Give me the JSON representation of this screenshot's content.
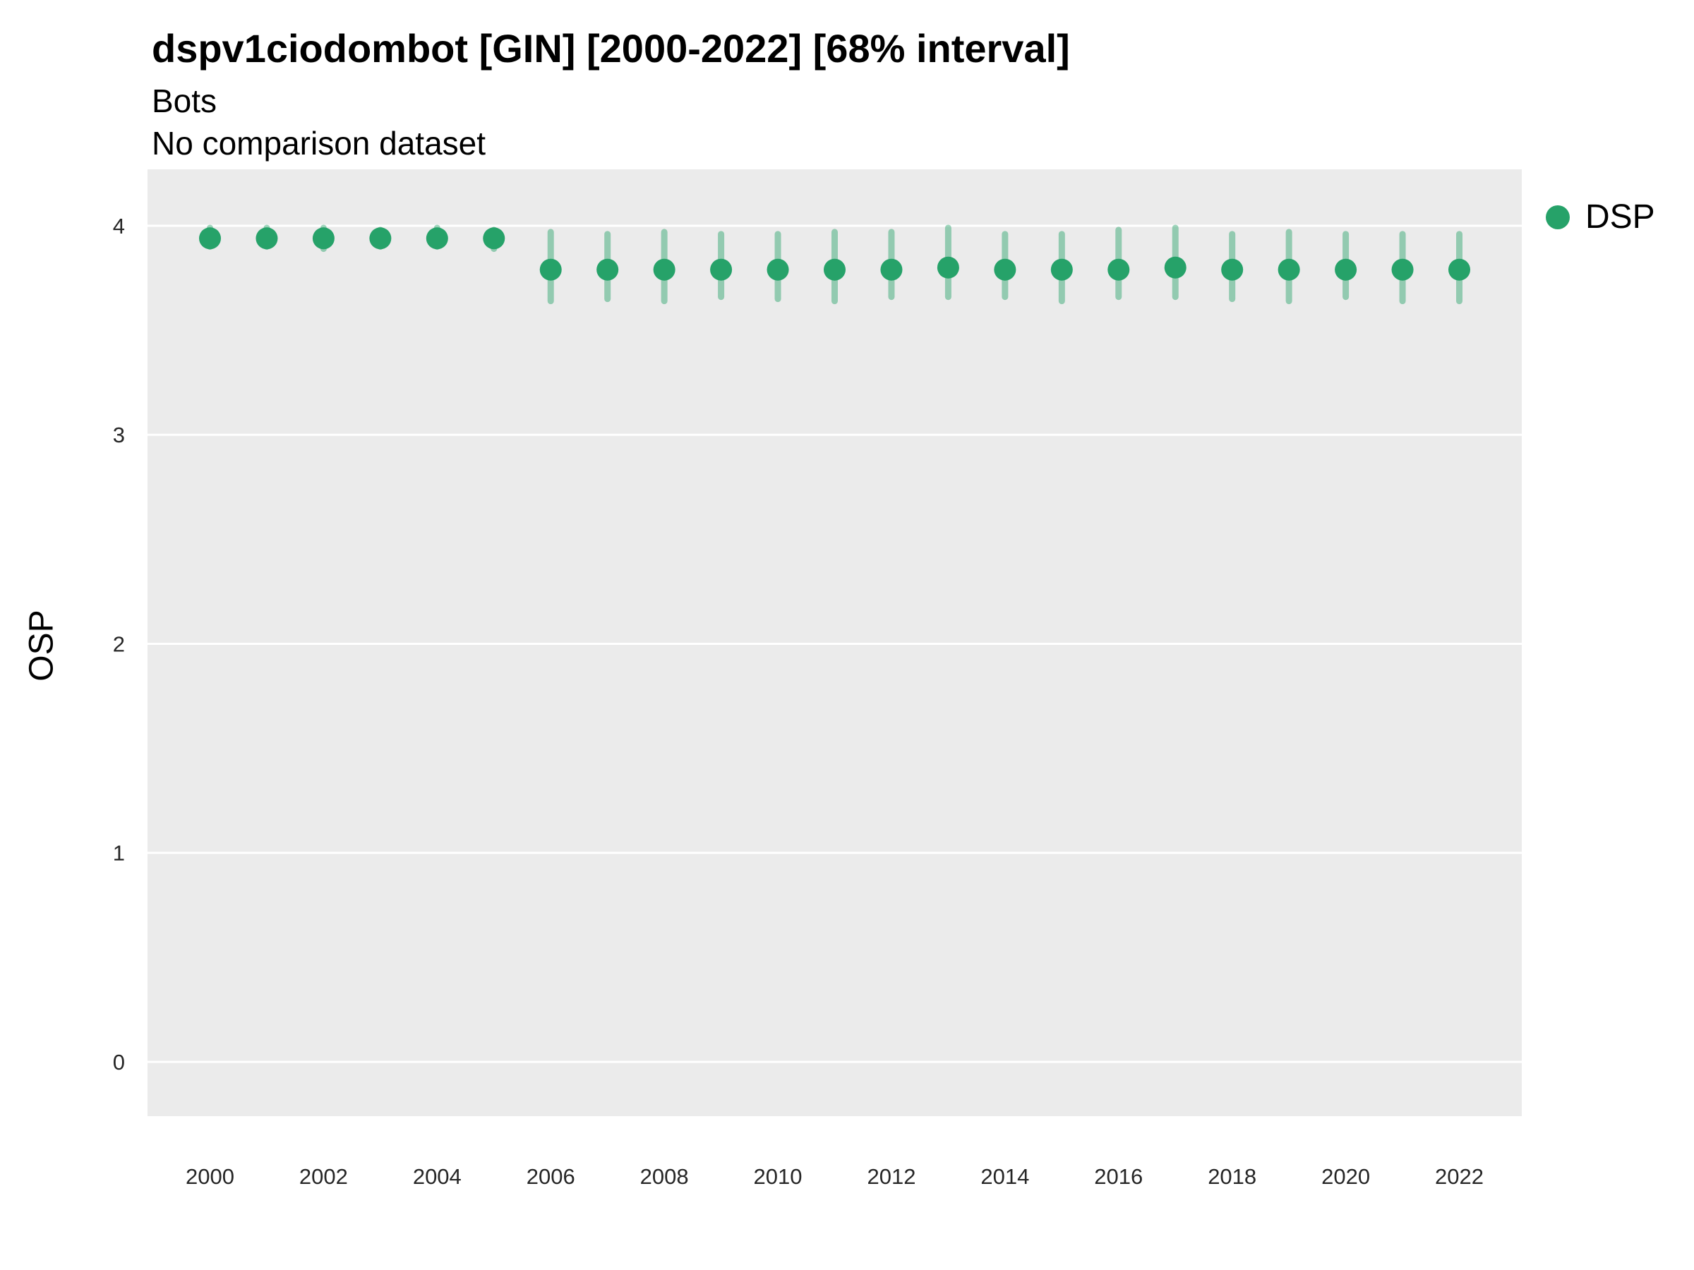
{
  "chart_data": {
    "type": "scatter",
    "subtype": "pointrange",
    "title": "dspv1ciodombot [GIN] [2000-2022] [68% interval]",
    "subtitle": "Bots",
    "note": "No comparison dataset",
    "xlabel": "",
    "ylabel": "OSP",
    "x_ticks": [
      2000,
      2002,
      2004,
      2006,
      2008,
      2010,
      2012,
      2014,
      2016,
      2018,
      2020,
      2022
    ],
    "y_ticks": [
      0,
      1,
      2,
      3,
      4
    ],
    "xlim": [
      1998.9,
      2023.1
    ],
    "ylim": [
      -0.26,
      4.27
    ],
    "grid": "horizontal-major-only",
    "panel_bg": "#ebebeb",
    "grid_color": "#ffffff",
    "tick_label_color": "#262626",
    "legend": {
      "position": "right",
      "entries": [
        {
          "label": "DSP",
          "color": "#26a269"
        }
      ]
    },
    "series": [
      {
        "name": "DSP",
        "color": "#26a269",
        "range_alpha": 0.45,
        "points": [
          {
            "x": 2000,
            "y": 3.94,
            "ymin": 3.9,
            "ymax": 3.99
          },
          {
            "x": 2001,
            "y": 3.94,
            "ymin": 3.9,
            "ymax": 3.99
          },
          {
            "x": 2002,
            "y": 3.94,
            "ymin": 3.89,
            "ymax": 3.99
          },
          {
            "x": 2003,
            "y": 3.94,
            "ymin": 3.9,
            "ymax": 3.98
          },
          {
            "x": 2004,
            "y": 3.94,
            "ymin": 3.9,
            "ymax": 3.99
          },
          {
            "x": 2005,
            "y": 3.94,
            "ymin": 3.89,
            "ymax": 3.98
          },
          {
            "x": 2006,
            "y": 3.79,
            "ymin": 3.64,
            "ymax": 3.97
          },
          {
            "x": 2007,
            "y": 3.79,
            "ymin": 3.65,
            "ymax": 3.96
          },
          {
            "x": 2008,
            "y": 3.79,
            "ymin": 3.64,
            "ymax": 3.97
          },
          {
            "x": 2009,
            "y": 3.79,
            "ymin": 3.66,
            "ymax": 3.96
          },
          {
            "x": 2010,
            "y": 3.79,
            "ymin": 3.65,
            "ymax": 3.96
          },
          {
            "x": 2011,
            "y": 3.79,
            "ymin": 3.64,
            "ymax": 3.97
          },
          {
            "x": 2012,
            "y": 3.79,
            "ymin": 3.66,
            "ymax": 3.97
          },
          {
            "x": 2013,
            "y": 3.8,
            "ymin": 3.66,
            "ymax": 3.99
          },
          {
            "x": 2014,
            "y": 3.79,
            "ymin": 3.66,
            "ymax": 3.96
          },
          {
            "x": 2015,
            "y": 3.79,
            "ymin": 3.64,
            "ymax": 3.96
          },
          {
            "x": 2016,
            "y": 3.79,
            "ymin": 3.66,
            "ymax": 3.98
          },
          {
            "x": 2017,
            "y": 3.8,
            "ymin": 3.66,
            "ymax": 3.99
          },
          {
            "x": 2018,
            "y": 3.79,
            "ymin": 3.65,
            "ymax": 3.96
          },
          {
            "x": 2019,
            "y": 3.79,
            "ymin": 3.64,
            "ymax": 3.97
          },
          {
            "x": 2020,
            "y": 3.79,
            "ymin": 3.66,
            "ymax": 3.96
          },
          {
            "x": 2021,
            "y": 3.79,
            "ymin": 3.64,
            "ymax": 3.96
          },
          {
            "x": 2022,
            "y": 3.79,
            "ymin": 3.64,
            "ymax": 3.96
          }
        ]
      }
    ]
  }
}
